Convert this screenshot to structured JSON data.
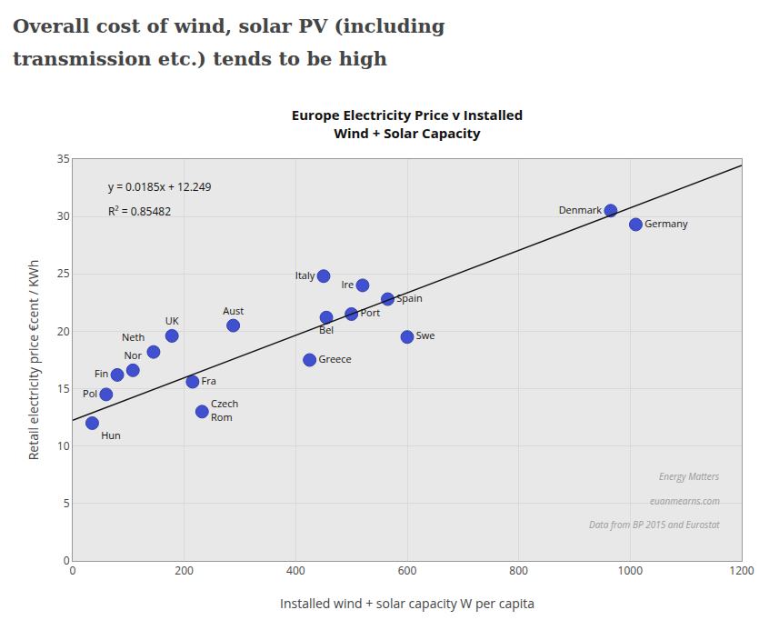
{
  "chart_data": {
    "type": "scatter",
    "title": "Europe Electricity Price v Installed\nWind + Solar Capacity",
    "xlabel": "Installed wind + solar capacity W per capita",
    "ylabel": "Retail electricity price €cent / KWh",
    "annotations": [
      "Overall cost of wind, solar PV (including",
      "transmission etc.) tends to be high",
      "y = 0.0185x + 12.249",
      "R² = 0.85482",
      "Energy Matters",
      "euanmearns.com",
      "Data from BP 2015 and Eurostat"
    ],
    "xlim": [
      0,
      1200
    ],
    "ylim": [
      0,
      35
    ],
    "xticks": [
      0,
      200,
      400,
      600,
      800,
      1000,
      1200
    ],
    "yticks": [
      0,
      5,
      10,
      15,
      20,
      25,
      30,
      35
    ],
    "grid": true,
    "series": [
      {
        "type": "scatter",
        "color": "#3344cc",
        "x": [
          35,
          60,
          80,
          108,
          145,
          178,
          215,
          232,
          288,
          425,
          455,
          450,
          500,
          520,
          565,
          600,
          965,
          1010
        ],
        "values": [
          12.0,
          14.5,
          16.2,
          16.6,
          18.2,
          19.6,
          15.6,
          13.0,
          20.5,
          17.5,
          21.2,
          24.8,
          21.5,
          24.0,
          22.8,
          19.5,
          30.5,
          29.3
        ],
        "labels": [
          "Hun",
          "Pol",
          "Fin",
          "Nor",
          "Neth",
          "UK",
          "Fra",
          "Czech\nRom",
          "Aust",
          "Greece",
          "Bel",
          "Italy",
          "Port",
          "Ire",
          "Spain",
          "Swe",
          "Denmark",
          "Germany"
        ]
      },
      {
        "type": "line",
        "color": "#111111",
        "x": [
          0,
          1200
        ],
        "values": [
          12.249,
          34.449
        ]
      }
    ]
  }
}
